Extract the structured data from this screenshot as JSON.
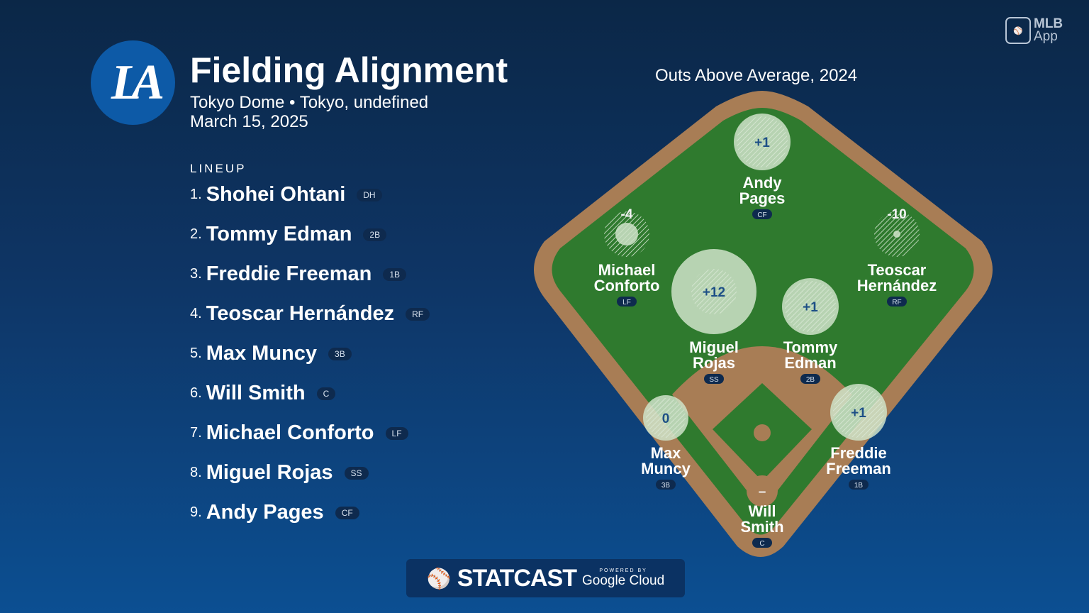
{
  "header": {
    "logo_text": "LA",
    "title": "Fielding Alignment",
    "venue": "Tokyo Dome • Tokyo, undefined",
    "date": "March 15, 2025"
  },
  "brand": {
    "app_line1": "MLB",
    "app_line2": "App"
  },
  "lineup": {
    "heading": "LINEUP",
    "items": [
      {
        "num": "1.",
        "name": "Shohei Ohtani",
        "pos": "DH"
      },
      {
        "num": "2.",
        "name": "Tommy Edman",
        "pos": "2B"
      },
      {
        "num": "3.",
        "name": "Freddie Freeman",
        "pos": "1B"
      },
      {
        "num": "4.",
        "name": "Teoscar Hernández",
        "pos": "RF"
      },
      {
        "num": "5.",
        "name": "Max Muncy",
        "pos": "3B"
      },
      {
        "num": "6.",
        "name": "Will Smith",
        "pos": "C"
      },
      {
        "num": "7.",
        "name": "Michael Conforto",
        "pos": "LF"
      },
      {
        "num": "8.",
        "name": "Miguel Rojas",
        "pos": "SS"
      },
      {
        "num": "9.",
        "name": "Andy Pages",
        "pos": "CF"
      }
    ]
  },
  "field": {
    "title": "Outs Above Average, 2024",
    "players": [
      {
        "first": "Andy",
        "last": "Pages",
        "pos": "CF",
        "oaa": "+1"
      },
      {
        "first": "Michael",
        "last": "Conforto",
        "pos": "LF",
        "oaa": "-4"
      },
      {
        "first": "Teoscar",
        "last": "Hernández",
        "pos": "RF",
        "oaa": "-10"
      },
      {
        "first": "Miguel",
        "last": "Rojas",
        "pos": "SS",
        "oaa": "+12"
      },
      {
        "first": "Tommy",
        "last": "Edman",
        "pos": "2B",
        "oaa": "+1"
      },
      {
        "first": "Max",
        "last": "Muncy",
        "pos": "3B",
        "oaa": "0"
      },
      {
        "first": "Freddie",
        "last": "Freeman",
        "pos": "1B",
        "oaa": "+1"
      },
      {
        "first": "Will",
        "last": "Smith",
        "pos": "C",
        "oaa": "–"
      }
    ]
  },
  "colors": {
    "grass": "#2f7a2e",
    "dirt": "#a87d55",
    "circle": "#cfe3c9"
  },
  "footer": {
    "brand": "STATCAST",
    "powered_by": "POWERED BY",
    "partner": "Google Cloud"
  }
}
